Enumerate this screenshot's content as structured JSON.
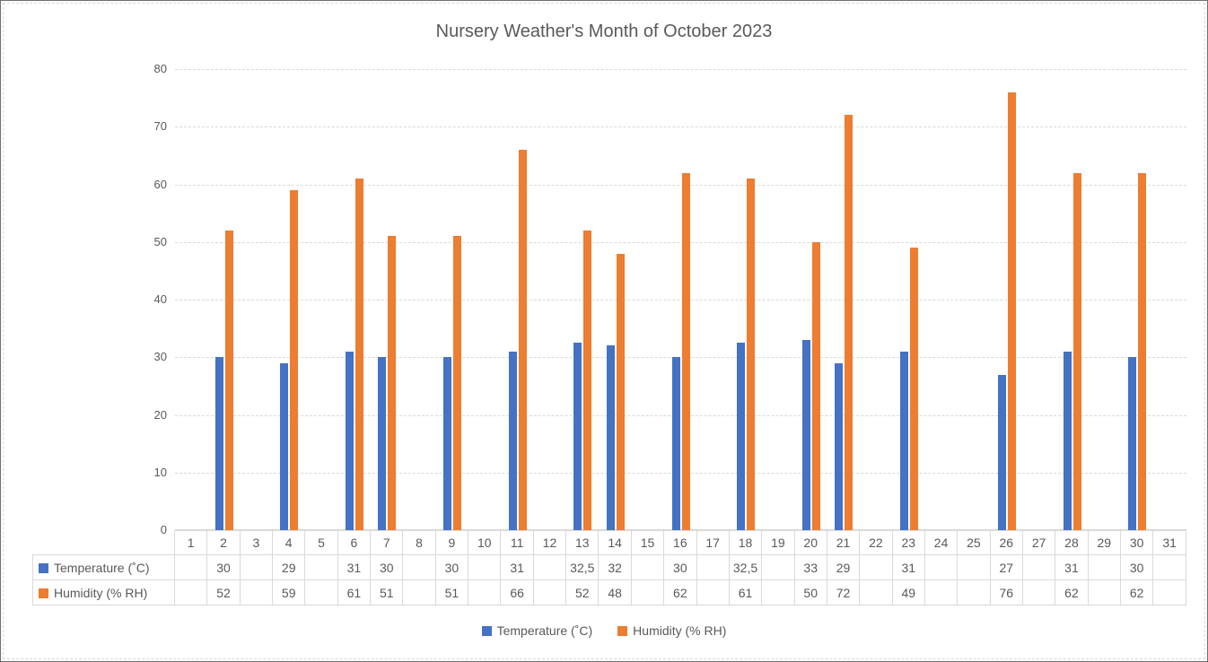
{
  "chart_data": {
    "type": "bar",
    "title": "Nursery Weather's Month of October 2023",
    "xlabel": "",
    "ylabel": "",
    "categories": [
      1,
      2,
      3,
      4,
      5,
      6,
      7,
      8,
      9,
      10,
      11,
      12,
      13,
      14,
      15,
      16,
      17,
      18,
      19,
      20,
      21,
      22,
      23,
      24,
      25,
      26,
      27,
      28,
      29,
      30,
      31
    ],
    "series": [
      {
        "key": "temperature",
        "name": "Temperature (˚C)",
        "color": "#4472C4",
        "values": [
          null,
          30,
          null,
          29,
          null,
          31,
          30,
          null,
          30,
          null,
          31,
          null,
          32.5,
          32,
          null,
          30,
          null,
          32.5,
          null,
          33,
          29,
          null,
          31,
          null,
          null,
          27,
          null,
          31,
          null,
          30,
          null
        ]
      },
      {
        "key": "humidity",
        "name": "Humidity (% RH)",
        "color": "#ED7D31",
        "values": [
          null,
          52,
          null,
          59,
          null,
          61,
          51,
          null,
          51,
          null,
          66,
          null,
          52,
          48,
          null,
          62,
          null,
          61,
          null,
          50,
          72,
          null,
          49,
          null,
          null,
          76,
          null,
          62,
          null,
          62,
          null
        ]
      }
    ],
    "ylim": [
      0,
      80
    ],
    "yticks": [
      0,
      10,
      20,
      30,
      40,
      50,
      60,
      70,
      80
    ],
    "grid": true,
    "gridline_style": "dashed",
    "legend_position": "bottom",
    "data_table_attached": true,
    "decimal_separator": ","
  },
  "colors": {
    "series_temperature": "#4472C4",
    "series_humidity": "#ED7D31",
    "text": "#595959",
    "gridline": "#D9D9D9",
    "table_border": "#D9D9D9"
  }
}
